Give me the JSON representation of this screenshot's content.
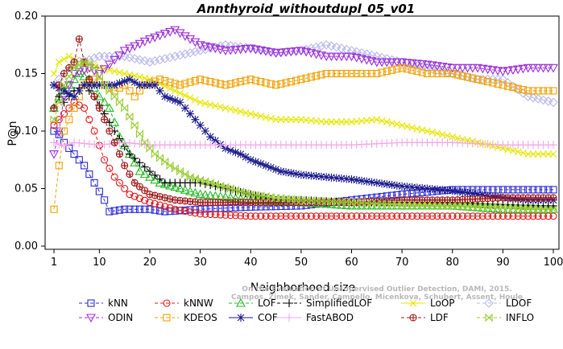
{
  "chart_data": {
    "type": "line",
    "title": "Annthyroid_withoutdupl_05_v01",
    "xlabel": "Neighborhood size",
    "ylabel": "P@n",
    "xlim": [
      1,
      100
    ],
    "ylim": [
      0.0,
      0.2
    ],
    "xticks": [
      "1",
      "10",
      "20",
      "30",
      "40",
      "50",
      "60",
      "70",
      "80",
      "90",
      "100"
    ],
    "yticks": [
      "0.00",
      "0.05",
      "0.10",
      "0.15",
      "0.20"
    ],
    "watermark": [
      "Campos, Zimek, Sander, Campello, Micenkova, Schubert, Assent, Houle",
      "On the Evaluation of Unsupervised Outlier Detection, DAMI, 2015."
    ],
    "legend_position": "bottom",
    "series": [
      {
        "name": "kNN",
        "color": "#2b2bd8",
        "marker": "square",
        "dash": "4,3",
        "points": [
          [
            1,
            0.1
          ],
          [
            2,
            0.097
          ],
          [
            3,
            0.09
          ],
          [
            5,
            0.08
          ],
          [
            7,
            0.07
          ],
          [
            9,
            0.055
          ],
          [
            11,
            0.04
          ],
          [
            12,
            0.03
          ],
          [
            15,
            0.032
          ],
          [
            20,
            0.032
          ],
          [
            23,
            0.03
          ],
          [
            30,
            0.032
          ],
          [
            40,
            0.034
          ],
          [
            50,
            0.035
          ],
          [
            60,
            0.04
          ],
          [
            70,
            0.045
          ],
          [
            80,
            0.049
          ],
          [
            90,
            0.049
          ],
          [
            100,
            0.049
          ]
        ]
      },
      {
        "name": "kNNW",
        "color": "#e01818",
        "marker": "circle",
        "dash": "4,3",
        "points": [
          [
            1,
            0.105
          ],
          [
            2,
            0.11
          ],
          [
            3,
            0.115
          ],
          [
            5,
            0.125
          ],
          [
            7,
            0.12
          ],
          [
            9,
            0.1
          ],
          [
            11,
            0.075
          ],
          [
            13,
            0.06
          ],
          [
            16,
            0.045
          ],
          [
            20,
            0.038
          ],
          [
            25,
            0.032
          ],
          [
            30,
            0.028
          ],
          [
            40,
            0.026
          ],
          [
            50,
            0.026
          ],
          [
            60,
            0.026
          ],
          [
            70,
            0.026
          ],
          [
            80,
            0.026
          ],
          [
            90,
            0.026
          ],
          [
            100,
            0.026
          ]
        ]
      },
      {
        "name": "LOF",
        "color": "#22bb22",
        "marker": "triangle",
        "dash": "4,3",
        "points": [
          [
            1,
            0.12
          ],
          [
            2,
            0.13
          ],
          [
            4,
            0.14
          ],
          [
            6,
            0.15
          ],
          [
            8,
            0.145
          ],
          [
            10,
            0.13
          ],
          [
            12,
            0.12
          ],
          [
            14,
            0.095
          ],
          [
            16,
            0.08
          ],
          [
            18,
            0.065
          ],
          [
            22,
            0.055
          ],
          [
            26,
            0.05
          ],
          [
            30,
            0.045
          ],
          [
            40,
            0.04
          ],
          [
            50,
            0.038
          ],
          [
            60,
            0.035
          ],
          [
            70,
            0.035
          ],
          [
            80,
            0.035
          ],
          [
            90,
            0.032
          ],
          [
            100,
            0.032
          ]
        ]
      },
      {
        "name": "SimplifiedLOF",
        "color": "#000000",
        "marker": "plus",
        "dash": "4,3",
        "points": [
          [
            1,
            0.12
          ],
          [
            2,
            0.13
          ],
          [
            3,
            0.125
          ],
          [
            5,
            0.135
          ],
          [
            7,
            0.14
          ],
          [
            9,
            0.13
          ],
          [
            11,
            0.115
          ],
          [
            13,
            0.1
          ],
          [
            16,
            0.08
          ],
          [
            20,
            0.065
          ],
          [
            23,
            0.055
          ],
          [
            27,
            0.055
          ],
          [
            30,
            0.055
          ],
          [
            35,
            0.05
          ],
          [
            40,
            0.045
          ],
          [
            45,
            0.04
          ],
          [
            50,
            0.04
          ],
          [
            60,
            0.038
          ],
          [
            70,
            0.038
          ],
          [
            80,
            0.038
          ],
          [
            90,
            0.036
          ],
          [
            100,
            0.035
          ]
        ]
      },
      {
        "name": "LoOP",
        "color": "#e6e600",
        "marker": "x",
        "dash": "",
        "points": [
          [
            1,
            0.15
          ],
          [
            2,
            0.16
          ],
          [
            4,
            0.165
          ],
          [
            6,
            0.16
          ],
          [
            8,
            0.16
          ],
          [
            10,
            0.155
          ],
          [
            15,
            0.15
          ],
          [
            20,
            0.145
          ],
          [
            25,
            0.135
          ],
          [
            30,
            0.125
          ],
          [
            35,
            0.12
          ],
          [
            40,
            0.115
          ],
          [
            45,
            0.11
          ],
          [
            50,
            0.11
          ],
          [
            55,
            0.108
          ],
          [
            60,
            0.108
          ],
          [
            65,
            0.11
          ],
          [
            70,
            0.105
          ],
          [
            75,
            0.1
          ],
          [
            80,
            0.095
          ],
          [
            85,
            0.09
          ],
          [
            90,
            0.085
          ],
          [
            95,
            0.08
          ],
          [
            100,
            0.08
          ]
        ]
      },
      {
        "name": "LDOF",
        "color": "#b8b8ee",
        "marker": "diamond",
        "dash": "4,3",
        "points": [
          [
            1,
            0.14
          ],
          [
            3,
            0.15
          ],
          [
            5,
            0.16
          ],
          [
            8,
            0.162
          ],
          [
            10,
            0.165
          ],
          [
            15,
            0.165
          ],
          [
            20,
            0.16
          ],
          [
            25,
            0.165
          ],
          [
            30,
            0.17
          ],
          [
            35,
            0.175
          ],
          [
            40,
            0.172
          ],
          [
            45,
            0.168
          ],
          [
            50,
            0.17
          ],
          [
            55,
            0.175
          ],
          [
            60,
            0.17
          ],
          [
            65,
            0.165
          ],
          [
            70,
            0.16
          ],
          [
            75,
            0.155
          ],
          [
            80,
            0.15
          ],
          [
            85,
            0.145
          ],
          [
            90,
            0.145
          ],
          [
            95,
            0.13
          ],
          [
            100,
            0.125
          ]
        ]
      },
      {
        "name": "ODIN",
        "color": "#9b2bd8",
        "marker": "triangle-down",
        "dash": "4,3",
        "points": [
          [
            1,
            0.08
          ],
          [
            2,
            0.1
          ],
          [
            3,
            0.13
          ],
          [
            5,
            0.15
          ],
          [
            8,
            0.155
          ],
          [
            10,
            0.15
          ],
          [
            15,
            0.17
          ],
          [
            20,
            0.18
          ],
          [
            25,
            0.188
          ],
          [
            28,
            0.18
          ],
          [
            30,
            0.175
          ],
          [
            35,
            0.17
          ],
          [
            40,
            0.172
          ],
          [
            45,
            0.168
          ],
          [
            50,
            0.17
          ],
          [
            55,
            0.165
          ],
          [
            60,
            0.165
          ],
          [
            65,
            0.16
          ],
          [
            70,
            0.16
          ],
          [
            75,
            0.158
          ],
          [
            80,
            0.155
          ],
          [
            85,
            0.155
          ],
          [
            90,
            0.152
          ],
          [
            95,
            0.155
          ],
          [
            100,
            0.155
          ]
        ]
      },
      {
        "name": "KDEOS",
        "color": "#f0a000",
        "marker": "square",
        "dash": "4,3",
        "points": [
          [
            1,
            0.032
          ],
          [
            2,
            0.07
          ],
          [
            3,
            0.1
          ],
          [
            5,
            0.12
          ],
          [
            7,
            0.14
          ],
          [
            9,
            0.145
          ],
          [
            11,
            0.14
          ],
          [
            13,
            0.135
          ],
          [
            15,
            0.14
          ],
          [
            17,
            0.13
          ],
          [
            19,
            0.14
          ],
          [
            22,
            0.145
          ],
          [
            26,
            0.14
          ],
          [
            30,
            0.145
          ],
          [
            35,
            0.14
          ],
          [
            40,
            0.145
          ],
          [
            45,
            0.14
          ],
          [
            50,
            0.145
          ],
          [
            55,
            0.15
          ],
          [
            60,
            0.15
          ],
          [
            65,
            0.15
          ],
          [
            70,
            0.155
          ],
          [
            75,
            0.15
          ],
          [
            80,
            0.15
          ],
          [
            85,
            0.145
          ],
          [
            90,
            0.14
          ],
          [
            95,
            0.135
          ],
          [
            100,
            0.135
          ]
        ]
      },
      {
        "name": "COF",
        "color": "#1a1a8c",
        "marker": "asterisk",
        "dash": "",
        "points": [
          [
            1,
            0.14
          ],
          [
            3,
            0.135
          ],
          [
            5,
            0.13
          ],
          [
            7,
            0.14
          ],
          [
            10,
            0.14
          ],
          [
            13,
            0.14
          ],
          [
            16,
            0.145
          ],
          [
            18,
            0.14
          ],
          [
            21,
            0.14
          ],
          [
            23,
            0.13
          ],
          [
            26,
            0.125
          ],
          [
            28,
            0.115
          ],
          [
            30,
            0.105
          ],
          [
            32,
            0.095
          ],
          [
            35,
            0.085
          ],
          [
            38,
            0.08
          ],
          [
            40,
            0.075
          ],
          [
            43,
            0.07
          ],
          [
            46,
            0.065
          ],
          [
            50,
            0.062
          ],
          [
            55,
            0.06
          ],
          [
            60,
            0.058
          ],
          [
            65,
            0.055
          ],
          [
            70,
            0.052
          ],
          [
            75,
            0.05
          ],
          [
            80,
            0.048
          ],
          [
            85,
            0.045
          ],
          [
            90,
            0.042
          ],
          [
            95,
            0.04
          ],
          [
            100,
            0.04
          ]
        ]
      },
      {
        "name": "FastABOD",
        "color": "#f4a6e8",
        "marker": "plus",
        "dash": "",
        "points": [
          [
            1,
            0.09
          ],
          [
            3,
            0.087
          ],
          [
            5,
            0.09
          ],
          [
            10,
            0.088
          ],
          [
            15,
            0.09
          ],
          [
            20,
            0.088
          ],
          [
            30,
            0.088
          ],
          [
            40,
            0.088
          ],
          [
            50,
            0.088
          ],
          [
            60,
            0.088
          ],
          [
            70,
            0.09
          ],
          [
            80,
            0.09
          ],
          [
            90,
            0.088
          ],
          [
            100,
            0.088
          ]
        ]
      },
      {
        "name": "LDF",
        "color": "#a01818",
        "marker": "circle-plus",
        "dash": "4,3",
        "points": [
          [
            1,
            0.12
          ],
          [
            2,
            0.14
          ],
          [
            3,
            0.15
          ],
          [
            5,
            0.16
          ],
          [
            6,
            0.18
          ],
          [
            7,
            0.16
          ],
          [
            9,
            0.13
          ],
          [
            11,
            0.11
          ],
          [
            13,
            0.09
          ],
          [
            15,
            0.07
          ],
          [
            17,
            0.055
          ],
          [
            20,
            0.045
          ],
          [
            25,
            0.04
          ],
          [
            30,
            0.038
          ],
          [
            40,
            0.038
          ],
          [
            50,
            0.038
          ],
          [
            60,
            0.038
          ],
          [
            70,
            0.04
          ],
          [
            80,
            0.04
          ],
          [
            90,
            0.042
          ],
          [
            100,
            0.042
          ]
        ]
      },
      {
        "name": "INFLO",
        "color": "#99cc33",
        "marker": "bowtie",
        "dash": "4,3",
        "points": [
          [
            1,
            0.11
          ],
          [
            3,
            0.14
          ],
          [
            5,
            0.155
          ],
          [
            7,
            0.16
          ],
          [
            9,
            0.155
          ],
          [
            11,
            0.14
          ],
          [
            13,
            0.13
          ],
          [
            15,
            0.12
          ],
          [
            17,
            0.105
          ],
          [
            19,
            0.09
          ],
          [
            21,
            0.08
          ],
          [
            24,
            0.07
          ],
          [
            28,
            0.06
          ],
          [
            32,
            0.055
          ],
          [
            36,
            0.05
          ],
          [
            40,
            0.045
          ],
          [
            45,
            0.042
          ],
          [
            50,
            0.04
          ],
          [
            60,
            0.038
          ],
          [
            70,
            0.036
          ],
          [
            80,
            0.035
          ],
          [
            90,
            0.034
          ],
          [
            100,
            0.032
          ]
        ]
      }
    ]
  }
}
